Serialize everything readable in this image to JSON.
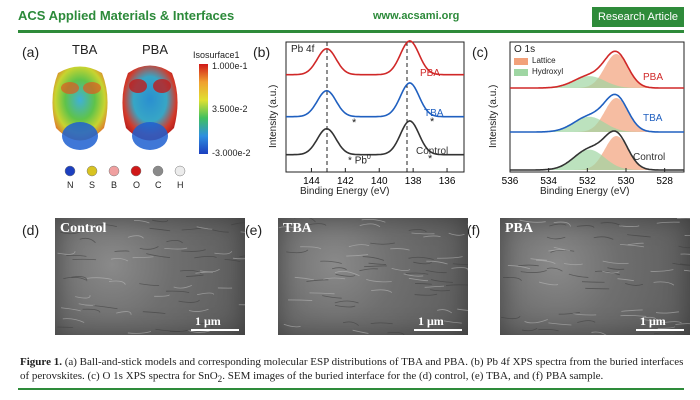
{
  "header": {
    "journal": "ACS Applied Materials & Interfaces",
    "site": "www.acsami.org",
    "badge": "Research Article"
  },
  "panel_a": {
    "label": "(a)",
    "mol1": "TBA",
    "mol2": "PBA",
    "isosurface_label": "Isosurface1",
    "cbar_top": "1.000e-1",
    "cbar_mid": "3.500e-2",
    "cbar_bottom": "-3.000e-2",
    "legend": [
      {
        "name": "N",
        "color": "#1c3fbf"
      },
      {
        "name": "S",
        "color": "#d8c321"
      },
      {
        "name": "B",
        "color": "#f0a0a0"
      },
      {
        "name": "O",
        "color": "#d01818"
      },
      {
        "name": "C",
        "color": "#8a8a8a"
      },
      {
        "name": "H",
        "color": "#ececec"
      }
    ]
  },
  "panel_b": {
    "label": "(b)",
    "title": "Pb 4f",
    "xlabel": "Binding Energy (eV)",
    "ylabel": "Intensity (a.u.)",
    "ticks": [
      "144",
      "142",
      "140",
      "138",
      "136"
    ],
    "series": [
      {
        "name": "PBA",
        "color": "#d02828"
      },
      {
        "name": "TBA",
        "color": "#2060c0"
      },
      {
        "name": "Control",
        "color": "#333333"
      }
    ],
    "pb0": "Pb",
    "pb0_sup": "0",
    "star": "*"
  },
  "panel_c": {
    "label": "(c)",
    "title": "O 1s",
    "xlabel": "Binding Energy (eV)",
    "ylabel": "Intensity (a.u.)",
    "ticks": [
      "536",
      "534",
      "532",
      "530",
      "528"
    ],
    "legend": [
      {
        "name": "Lattice",
        "color": "#f2a17a"
      },
      {
        "name": "Hydroxyl",
        "color": "#9fd6a3"
      }
    ],
    "series": [
      {
        "name": "PBA",
        "color": "#d02828"
      },
      {
        "name": "TBA",
        "color": "#2060c0"
      },
      {
        "name": "Control",
        "color": "#333333"
      }
    ]
  },
  "sem": [
    {
      "label": "(d)",
      "title": "Control",
      "scale": "1 μm"
    },
    {
      "label": "(e)",
      "title": "TBA",
      "scale": "1 μm"
    },
    {
      "label": "(f)",
      "title": "PBA",
      "scale": "1 μm"
    }
  ],
  "caption": {
    "lead": "Figure 1.",
    "text": " (a) Ball-and-stick models and corresponding molecular ESP distributions of TBA and PBA. (b) Pb 4f XPS spectra from the buried interfaces of perovskites. (c) O 1s XPS spectra for SnO",
    "sub": "2",
    "text2": ". SEM images of the buried interface for the (d) control, (e) TBA, and (f) PBA sample."
  }
}
